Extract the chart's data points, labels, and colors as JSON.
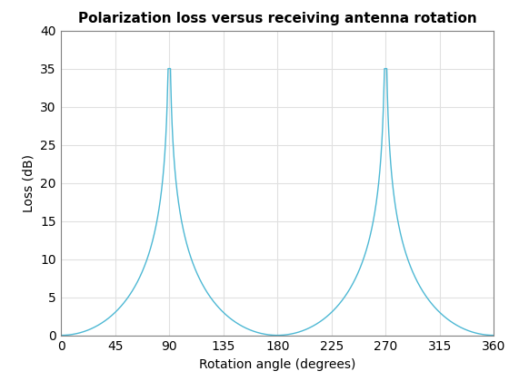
{
  "title": "Polarization loss versus receiving antenna rotation",
  "xlabel": "Rotation angle (degrees)",
  "ylabel": "Loss (dB)",
  "xlim": [
    0,
    360
  ],
  "ylim": [
    0,
    40
  ],
  "xticks": [
    0,
    45,
    90,
    135,
    180,
    225,
    270,
    315,
    360
  ],
  "yticks": [
    0,
    5,
    10,
    15,
    20,
    25,
    30,
    35,
    40
  ],
  "line_color": "#4db8d4",
  "line_width": 1.0,
  "cap_db": 35.0,
  "num_points": 20000,
  "background_color": "#ffffff",
  "grid_color": "#e0e0e0",
  "title_fontsize": 11,
  "label_fontsize": 10,
  "tick_fontsize": 10
}
